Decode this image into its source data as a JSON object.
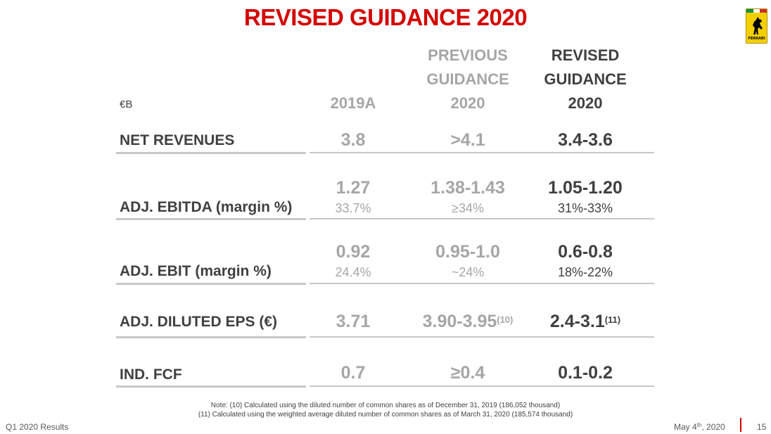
{
  "title": "REVISED GUIDANCE 2020",
  "logo": {
    "icon": "prancing-horse-icon",
    "text": "FERRARI",
    "colors": {
      "shield": "#f3cf00",
      "green": "#009246",
      "white": "#ffffff",
      "red": "#ce2b37"
    }
  },
  "table": {
    "unit": "€B",
    "columns": {
      "a2019": "2019A",
      "previous": [
        "PREVIOUS",
        "GUIDANCE",
        "2020"
      ],
      "revised": [
        "REVISED",
        "GUIDANCE",
        "2020"
      ]
    },
    "rows": [
      {
        "label": "NET REVENUES",
        "a2019": "3.8",
        "previous": ">4.1",
        "revised": "3.4-3.6"
      },
      {
        "label": "ADJ. EBITDA (margin %)",
        "a2019": "1.27",
        "a2019_margin": "33.7%",
        "previous": "1.38-1.43",
        "previous_margin": "≥34%",
        "revised": "1.05-1.20",
        "revised_margin": "31%-33%"
      },
      {
        "label": "ADJ. EBIT (margin %)",
        "a2019": "0.92",
        "a2019_margin": "24.4%",
        "previous": "0.95-1.0",
        "previous_margin": "~24%",
        "revised": "0.6-0.8",
        "revised_margin": "18%-22%"
      },
      {
        "label": "ADJ. DILUTED EPS (€)",
        "a2019": "3.71",
        "previous": "3.90-3.95",
        "previous_note": "(10)",
        "revised": "2.4-3.1",
        "revised_note": "(11)"
      },
      {
        "label": "IND. FCF",
        "a2019": "0.7",
        "previous": "≥0.4",
        "revised": "0.1-0.2"
      }
    ]
  },
  "notes": {
    "line1": "Note: (10) Calculated using the diluted number of common shares as of December 31, 2019 (186,052 thousand)",
    "line2": "(11) Calculated using the weighted average diluted number of common shares as of March 31, 2020 (185,574 thousand)"
  },
  "footer": {
    "left": "Q1 2020 Results",
    "date_prefix": "May 4",
    "date_sup": "th",
    "date_suffix": ", 2020",
    "page": "15"
  }
}
